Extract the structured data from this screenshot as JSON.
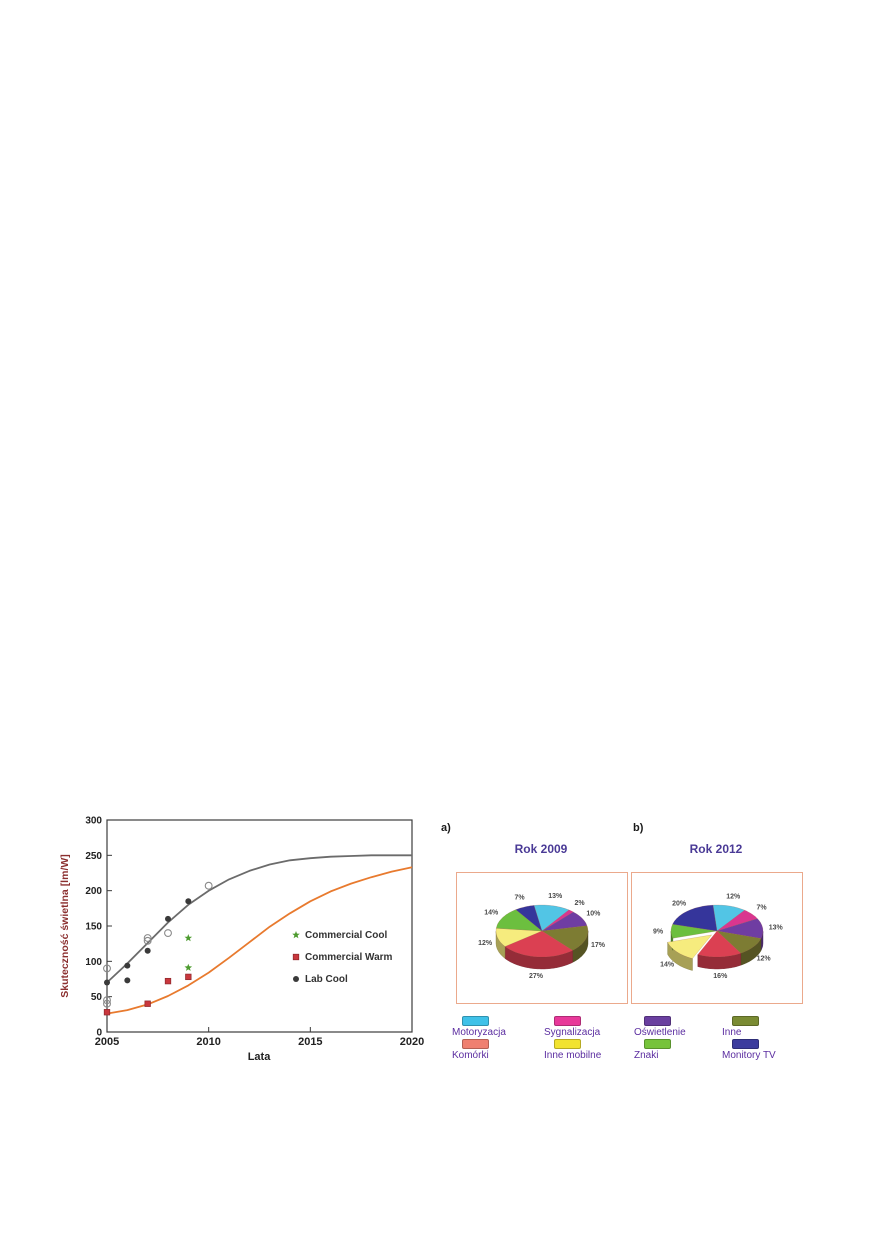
{
  "panels": {
    "a_label": "a)",
    "b_label": "b)"
  },
  "pie_legend": {
    "text_color": "#5b2da0",
    "items": [
      {
        "label": "Motoryzacja",
        "color": "#3fc1e8"
      },
      {
        "label": "Sygnalizacja",
        "color": "#e8399a"
      },
      {
        "label": "Oświetlenie",
        "color": "#6a3fa0"
      },
      {
        "label": "Inne",
        "color": "#7a8b33"
      },
      {
        "label": "Komórki",
        "color": "#ef8070"
      },
      {
        "label": "Inne mobilne",
        "color": "#f2e32f"
      },
      {
        "label": "Znaki",
        "color": "#76c33a"
      },
      {
        "label": "Monitory TV",
        "color": "#3c3c9e"
      }
    ]
  },
  "chart_data": [
    {
      "type": "line",
      "xlabel": "Lata",
      "ylabel": "Skuteczność świetlna [lm/W]",
      "ylabel_color": "#8b2f2f",
      "axis_color": "#3c3c3c",
      "xlim": [
        2005,
        2020
      ],
      "ylim": [
        0,
        300
      ],
      "x_ticks": [
        2005,
        2010,
        2015,
        2020
      ],
      "y_ticks": [
        0,
        50,
        100,
        150,
        200,
        250,
        300
      ],
      "grid": false,
      "legend_position": "middle-right",
      "series": [
        {
          "name": "Lab Cool trend",
          "kind": "curve",
          "color": "#6b6b6b",
          "in_legend": false,
          "x": [
            2005,
            2006,
            2007,
            2008,
            2009,
            2010,
            2011,
            2012,
            2013,
            2014,
            2015,
            2016,
            2017,
            2018,
            2019,
            2020
          ],
          "y": [
            70,
            97,
            126,
            155,
            180,
            200,
            216,
            228,
            237,
            243,
            246,
            248,
            249,
            250,
            250,
            250
          ]
        },
        {
          "name": "Commercial Warm trend",
          "kind": "curve",
          "color": "#e87a2e",
          "in_legend": false,
          "x": [
            2005,
            2006,
            2007,
            2008,
            2009,
            2010,
            2011,
            2012,
            2013,
            2014,
            2015,
            2016,
            2017,
            2018,
            2019,
            2020
          ],
          "y": [
            26,
            31,
            39,
            51,
            66,
            84,
            105,
            127,
            149,
            168,
            185,
            199,
            210,
            219,
            227,
            233
          ]
        },
        {
          "name": "Commercial Cool",
          "kind": "scatter",
          "marker": "star",
          "color": "#4d9b2f",
          "in_legend": true,
          "points": [
            [
              2009,
              133
            ],
            [
              2009,
              91
            ]
          ]
        },
        {
          "name": "Commercial Warm",
          "kind": "scatter",
          "marker": "square",
          "color": "#c9373d",
          "in_legend": true,
          "points": [
            [
              2005,
              28
            ],
            [
              2007,
              40
            ],
            [
              2008,
              72
            ],
            [
              2009,
              78
            ]
          ]
        },
        {
          "name": "Lab Cool",
          "kind": "scatter",
          "marker": "circle",
          "color": "#3a3a3a",
          "in_legend": true,
          "points": [
            [
              2005,
              70
            ],
            [
              2006,
              73
            ],
            [
              2006,
              94
            ],
            [
              2007,
              115
            ],
            [
              2008,
              160
            ],
            [
              2009,
              185
            ]
          ]
        },
        {
          "name": "Lab Cool (open markers)",
          "kind": "scatter",
          "marker": "open-circle",
          "color": "#8a8a8a",
          "in_legend": false,
          "points": [
            [
              2005,
              90
            ],
            [
              2005,
              45
            ],
            [
              2005,
              40
            ],
            [
              2007,
              133
            ],
            [
              2007,
              129
            ],
            [
              2008,
              140
            ],
            [
              2010,
              207
            ]
          ]
        }
      ]
    },
    {
      "type": "pie",
      "style": "3d",
      "title": "Rok 2009",
      "title_color": "#4a3a96",
      "frame_color": "#eba98c",
      "labels": [
        "Motoryzacja",
        "Sygnalizacja",
        "Oświetlenie",
        "Inne",
        "Komórki",
        "Inne mobilne",
        "Znaki",
        "Monitory TV"
      ],
      "values": [
        13,
        2,
        10,
        17,
        27,
        12,
        14,
        7
      ],
      "percent_labels": [
        "13%",
        "2%",
        "10%",
        "17%",
        "27%",
        "12%",
        "14%",
        "7%"
      ],
      "colors": [
        "#52c5e5",
        "#d9368f",
        "#6f3da2",
        "#7d7c33",
        "#db4052",
        "#f6ec7e",
        "#6cbf3f",
        "#35359b"
      ],
      "start_angle_deg": 100,
      "exploded_label": null
    },
    {
      "type": "pie",
      "style": "3d",
      "title": "Rok 2012",
      "title_color": "#4a3a96",
      "frame_color": "#eba98c",
      "labels": [
        "Motoryzacja",
        "Sygnalizacja",
        "Oświetlenie",
        "Inne",
        "Komórki",
        "Inne mobilne",
        "Znaki",
        "Monitory TV"
      ],
      "values": [
        12,
        7,
        13,
        12,
        16,
        14,
        9,
        20
      ],
      "percent_labels": [
        "12%",
        "7%",
        "13%",
        "12%",
        "16%",
        "14%",
        "9%",
        "20%"
      ],
      "colors": [
        "#52c5e5",
        "#d9368f",
        "#6f3da2",
        "#7d7c33",
        "#db4052",
        "#f6ec7e",
        "#6cbf3f",
        "#35359b"
      ],
      "start_angle_deg": 95,
      "exploded_label": "Inne mobilne"
    }
  ]
}
